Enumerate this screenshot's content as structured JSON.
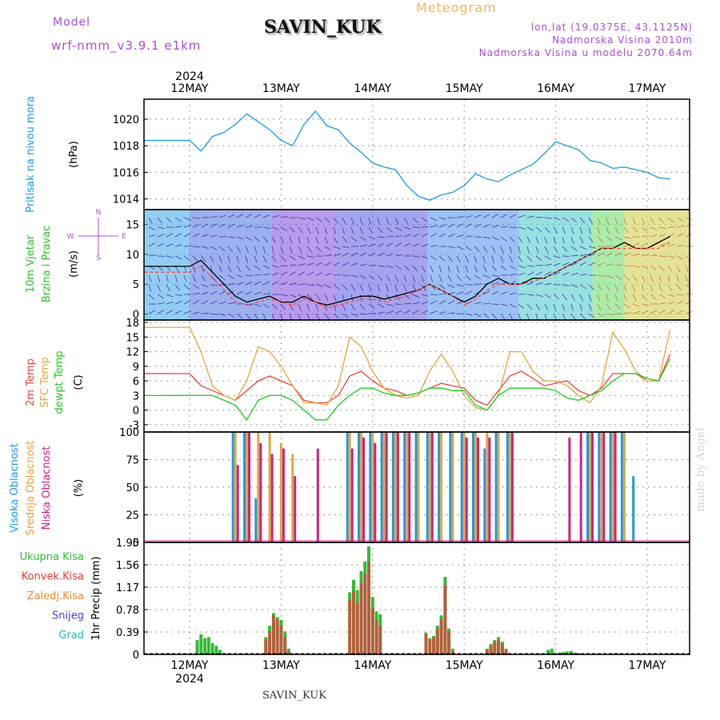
{
  "header": {
    "model_label": "Model",
    "model_name": "wrf-nmm_v3.9.1 e1km",
    "station": "SAVIN_KUK",
    "meteogram_label": "Meteogram",
    "coords": "lon,lat (19.0375E, 43.1125N)",
    "elevation": "Nadmorska Visina 2010m",
    "elevation_model": "Nadmorska Visina u modelu 2070.64m"
  },
  "footer": {
    "station": "SAVIN_KUK"
  },
  "watermark": "made by Angel",
  "colors": {
    "pressure": "#1e9be0",
    "temp2m": "#ee4444",
    "sfc_temp": "#e0a840",
    "dewpoint": "#22cc22",
    "cloud_high": "#1e9be0",
    "cloud_mid": "#e0a840",
    "cloud_low": "#cc2288",
    "precip_total": "#33bb33",
    "precip_conv": "#e04040",
    "precip_strat": "#ee8833",
    "precip_snow": "#4444dd",
    "precip_hail": "#22bbbb",
    "wind_speed": "#000000",
    "wind_gust": "#ff4444"
  },
  "chart_data": [
    {
      "type": "line",
      "panel": "pressure",
      "ylabel": [
        "Pritisak na nivou mora",
        "(hPa)"
      ],
      "ylim": [
        1013.2,
        1021.5
      ],
      "ticks": [
        1014,
        1016,
        1018,
        1020
      ],
      "grid": true,
      "x_day": [
        0,
        0.125,
        0.25,
        0.375,
        0.5,
        0.625,
        0.75,
        0.875,
        1.0,
        1.125,
        1.25,
        1.375,
        1.5,
        1.625,
        1.75,
        1.875,
        2.0,
        2.125,
        2.25,
        2.375,
        2.5,
        2.625,
        2.75,
        2.875,
        3.0,
        3.125,
        3.25,
        3.375,
        3.5,
        3.625,
        3.75,
        3.875,
        4.0,
        4.125,
        4.25,
        4.375,
        4.5,
        4.625,
        4.75,
        4.875,
        5.0,
        5.125,
        5.25
      ],
      "series": [
        {
          "values": [
            1018.4,
            1017.6,
            1018.7,
            1019.0,
            1019.6,
            1020.4,
            1019.8,
            1019.2,
            1018.4,
            1018.0,
            1019.6,
            1020.6,
            1019.5,
            1019.2,
            1018.2,
            1017.5,
            1016.7,
            1016.4,
            1016.2,
            1015.0,
            1014.2,
            1013.9,
            1014.3,
            1014.5,
            1015.0,
            1015.9,
            1015.5,
            1015.3,
            1015.8,
            1016.2,
            1016.6,
            1017.4,
            1018.3,
            1018.0,
            1017.7,
            1016.9,
            1016.7,
            1016.3,
            1016.4,
            1016.2,
            1016.0,
            1015.6,
            1015.5
          ]
        }
      ]
    },
    {
      "type": "line",
      "panel": "wind",
      "ylabel": [
        "10m Vjetar",
        "Brzina i Pravac",
        "(m/s)"
      ],
      "compass": [
        "N",
        "W",
        "E",
        "S"
      ],
      "ylim": [
        -1,
        17.5
      ],
      "ticks": [
        0,
        5,
        10,
        15
      ],
      "grid": true,
      "x_day": [
        0,
        0.125,
        0.25,
        0.375,
        0.5,
        0.625,
        0.75,
        0.875,
        1.0,
        1.125,
        1.25,
        1.375,
        1.5,
        1.625,
        1.75,
        1.875,
        2.0,
        2.125,
        2.25,
        2.375,
        2.5,
        2.625,
        2.75,
        2.875,
        3.0,
        3.125,
        3.25,
        3.375,
        3.5,
        3.625,
        3.75,
        3.875,
        4.0,
        4.125,
        4.25,
        4.375,
        4.5,
        4.625,
        4.75,
        4.875,
        5.0,
        5.125,
        5.25
      ],
      "series": [
        {
          "name": "speed",
          "values": [
            8,
            9,
            7,
            5,
            3,
            2,
            2.5,
            3,
            2,
            2,
            3,
            2,
            1.5,
            2,
            2.5,
            3,
            3,
            2.5,
            3,
            3.5,
            4,
            5,
            4,
            3,
            2,
            3,
            5,
            6,
            5,
            5,
            6,
            6,
            7,
            8,
            9,
            10,
            11,
            11,
            12,
            11,
            11,
            12,
            13
          ]
        },
        {
          "name": "gust",
          "values": [
            7,
            8,
            6,
            4,
            2,
            1.5,
            2,
            2.5,
            2,
            1.5,
            2.5,
            2,
            1,
            1.5,
            2,
            2.5,
            2.5,
            2,
            2.5,
            3,
            4,
            5,
            4,
            3,
            1.5,
            2.5,
            4,
            5,
            5,
            5,
            5.5,
            6,
            7,
            8,
            9,
            10,
            11,
            11,
            11,
            11,
            11,
            11,
            12
          ]
        }
      ]
    },
    {
      "type": "line",
      "panel": "temperature",
      "ylabel": [
        "2m Temp",
        "SFC Temp",
        "dewpt Temp",
        "(C)"
      ],
      "ylim": [
        -4.5,
        18.5
      ],
      "ticks": [
        -3,
        0,
        3,
        6,
        9,
        12,
        15,
        18
      ],
      "grid": true,
      "x_day": [
        0,
        0.125,
        0.25,
        0.375,
        0.5,
        0.625,
        0.75,
        0.875,
        1.0,
        1.125,
        1.25,
        1.375,
        1.5,
        1.625,
        1.75,
        1.875,
        2.0,
        2.125,
        2.25,
        2.375,
        2.5,
        2.625,
        2.75,
        2.875,
        3.0,
        3.125,
        3.25,
        3.375,
        3.5,
        3.625,
        3.75,
        3.875,
        4.0,
        4.125,
        4.25,
        4.375,
        4.5,
        4.625,
        4.75,
        4.875,
        5.0,
        5.125,
        5.25
      ],
      "series": [
        {
          "name": "2m Temp",
          "values": [
            7.5,
            5,
            4,
            3,
            2,
            4,
            6,
            7,
            6,
            5,
            2,
            1.5,
            1.5,
            3,
            7,
            8,
            6,
            4.5,
            4,
            3,
            3.5,
            4.5,
            5.5,
            5,
            4.5,
            2,
            1,
            4,
            7,
            8,
            6.5,
            5,
            5.5,
            6,
            4,
            3,
            4.5,
            7.5,
            7.5,
            7.5,
            6,
            6,
            11.5
          ]
        },
        {
          "name": "SFC Temp",
          "values": [
            17,
            12,
            5,
            3,
            2,
            6,
            13,
            12,
            9,
            5,
            1.5,
            1.5,
            1,
            5,
            15,
            13,
            8,
            4.5,
            3,
            2.5,
            3,
            8,
            11.5,
            8,
            3,
            0.5,
            0,
            3,
            12,
            12,
            8,
            6,
            6,
            5,
            3,
            1.5,
            5,
            16,
            12.5,
            8,
            6,
            6,
            16.5
          ]
        },
        {
          "name": "dewpt Temp",
          "values": [
            3,
            3,
            3,
            2,
            1,
            -2,
            2,
            3,
            3,
            2,
            0,
            -2,
            -2,
            1,
            3,
            4.5,
            4.5,
            3.5,
            3,
            3,
            3.5,
            4.5,
            4.5,
            4,
            4,
            1,
            0,
            3,
            4.5,
            4.5,
            4.5,
            4.5,
            4,
            2.5,
            2,
            3,
            4,
            6,
            7.5,
            7.5,
            6.5,
            6,
            10.5
          ]
        }
      ]
    },
    {
      "type": "bar",
      "panel": "clouds",
      "ylabel": [
        "Visoka Oblacnost",
        "Srednja Oblacnost",
        "Niska Oblacnost",
        "(%)"
      ],
      "ylim": [
        0,
        100
      ],
      "ticks": [
        0,
        25,
        50,
        75,
        100
      ],
      "grid": true,
      "x_day": [
        0.5,
        0.625,
        0.75,
        0.875,
        1.0,
        1.125,
        1.25,
        1.375,
        1.5,
        1.625,
        1.75,
        1.875,
        2.0,
        2.125,
        2.25,
        2.375,
        2.5,
        2.625,
        2.75,
        2.875,
        3.0,
        3.125,
        3.25,
        3.375,
        3.5,
        3.625,
        3.75,
        3.875,
        4.0,
        4.125,
        4.25,
        4.375,
        4.5,
        4.625,
        4.75,
        4.875
      ],
      "series": [
        {
          "name": "Visoka Oblacnost",
          "values": [
            100,
            100,
            40,
            0,
            0,
            0,
            0,
            0,
            0,
            0,
            100,
            100,
            100,
            100,
            100,
            100,
            100,
            100,
            100,
            100,
            100,
            100,
            85,
            100,
            100,
            0,
            0,
            0,
            0,
            0,
            0,
            100,
            100,
            100,
            100,
            60
          ]
        },
        {
          "name": "Srednja Oblacnost",
          "values": [
            100,
            100,
            100,
            100,
            90,
            80,
            0,
            0,
            0,
            0,
            100,
            100,
            100,
            100,
            100,
            100,
            100,
            100,
            100,
            100,
            100,
            100,
            100,
            100,
            100,
            0,
            0,
            0,
            0,
            0,
            0,
            100,
            100,
            100,
            100,
            0
          ]
        },
        {
          "name": "Niska Oblacnost",
          "values": [
            70,
            100,
            90,
            80,
            85,
            60,
            0,
            85,
            0,
            0,
            85,
            95,
            90,
            100,
            100,
            100,
            0,
            100,
            0,
            0,
            95,
            95,
            95,
            0,
            100,
            0,
            0,
            0,
            0,
            95,
            100,
            100,
            100,
            100,
            0,
            0
          ]
        }
      ]
    },
    {
      "type": "bar",
      "panel": "precipitation",
      "ylabel": [
        "1hr Precip (mm)"
      ],
      "legend": [
        "Ukupna Kisa",
        "Konvek.Kisa",
        "Zaledj.Kisa",
        "Snijeg",
        "Grad"
      ],
      "ylim": [
        0,
        1.95
      ],
      "ticks": [
        0,
        0.39,
        0.78,
        1.17,
        1.56,
        1.95
      ],
      "grid": true,
      "x_day": [
        0.083,
        0.125,
        0.167,
        0.208,
        0.25,
        0.292,
        0.333,
        0.833,
        0.875,
        0.917,
        0.958,
        1.0,
        1.042,
        1.083,
        1.75,
        1.792,
        1.833,
        1.875,
        1.917,
        1.958,
        2.0,
        2.042,
        2.083,
        2.583,
        2.625,
        2.667,
        2.708,
        2.75,
        2.792,
        2.833,
        2.875,
        3.25,
        3.292,
        3.333,
        3.375,
        3.417,
        3.458,
        3.917,
        3.958,
        4.0,
        4.042,
        4.083,
        4.125,
        4.167,
        4.208,
        4.25,
        4.292
      ],
      "series": [
        {
          "name": "Ukupna Kisa",
          "values": [
            0.25,
            0.35,
            0.28,
            0.3,
            0.2,
            0.15,
            0.08,
            0.3,
            0.5,
            0.72,
            0.65,
            0.6,
            0.4,
            0.1,
            1.08,
            1.3,
            1.12,
            1.45,
            1.62,
            1.88,
            1.0,
            0.75,
            0.7,
            0.38,
            0.28,
            0.32,
            0.5,
            0.68,
            1.35,
            0.45,
            0.1,
            0.1,
            0.18,
            0.25,
            0.3,
            0.22,
            0.1,
            0.08,
            0.1,
            0.02,
            0.03,
            0.04,
            0.05,
            0.06,
            0.03,
            0.02,
            0.01
          ]
        },
        {
          "name": "Konvek.Kisa",
          "values": [
            0.0,
            0.0,
            0.0,
            0.0,
            0.0,
            0.0,
            0.0,
            0.25,
            0.4,
            0.68,
            0.6,
            0.5,
            0.3,
            0.05,
            0.95,
            1.1,
            0.9,
            1.25,
            1.4,
            1.6,
            0.8,
            0.6,
            0.5,
            0.35,
            0.25,
            0.3,
            0.45,
            0.6,
            1.2,
            0.4,
            0.05,
            0.08,
            0.15,
            0.22,
            0.25,
            0.18,
            0.08,
            0.0,
            0.0,
            0.0,
            0.0,
            0.0,
            0.0,
            0.0,
            0.0,
            0.0,
            0.0
          ]
        }
      ]
    }
  ],
  "axis": {
    "top_year": "2024",
    "bottom_year": "2024",
    "days": [
      "12MAY",
      "13MAY",
      "14MAY",
      "15MAY",
      "16MAY",
      "17MAY"
    ]
  }
}
